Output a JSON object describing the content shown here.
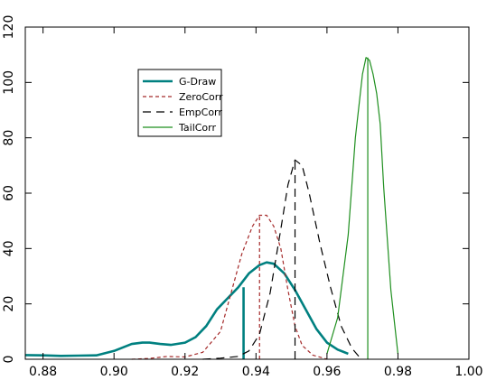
{
  "chart_data": {
    "type": "line",
    "title": "",
    "xlabel": "",
    "ylabel": "",
    "xlim": [
      0.875,
      1.0
    ],
    "ylim": [
      0,
      120
    ],
    "grid": false,
    "legend_position": "upper-left",
    "xticks": [
      0.88,
      0.9,
      0.92,
      0.94,
      0.96,
      0.98,
      1.0
    ],
    "xtick_labels": [
      "0.88",
      "0.90",
      "0.92",
      "0.94",
      "0.96",
      "0.98",
      "1.00"
    ],
    "yticks": [
      0,
      20,
      40,
      60,
      80,
      100,
      120
    ],
    "ytick_labels": [
      "0",
      "20",
      "40",
      "60",
      "80",
      "100",
      "120"
    ],
    "series": [
      {
        "name": "G-Draw",
        "color": "#008080",
        "style": "solid-thick",
        "x": [
          0.875,
          0.88,
          0.885,
          0.89,
          0.895,
          0.9,
          0.905,
          0.908,
          0.91,
          0.913,
          0.916,
          0.92,
          0.923,
          0.926,
          0.929,
          0.932,
          0.935,
          0.938,
          0.941,
          0.943,
          0.945,
          0.948,
          0.951,
          0.954,
          0.957,
          0.96,
          0.963,
          0.966
        ],
        "y": [
          1.5,
          1.4,
          1.2,
          1.3,
          1.4,
          3,
          5.5,
          6,
          6,
          5.5,
          5.2,
          6,
          8,
          12,
          18,
          22,
          26,
          31,
          34,
          35,
          34.5,
          31,
          25,
          18,
          11,
          6,
          3.5,
          2
        ],
        "vline": {
          "x": 0.9365,
          "y": 26
        }
      },
      {
        "name": "ZeroCorr",
        "color": "#a52a2a",
        "style": "dotted",
        "x": [
          0.905,
          0.91,
          0.915,
          0.92,
          0.925,
          0.93,
          0.933,
          0.936,
          0.939,
          0.941,
          0.943,
          0.945,
          0.947,
          0.949,
          0.951,
          0.953,
          0.956,
          0.96
        ],
        "y": [
          0,
          0.3,
          1,
          0.8,
          2.5,
          10,
          24,
          38,
          48,
          52,
          52,
          48,
          40,
          25,
          12,
          5,
          1.5,
          0
        ],
        "vline": {
          "x": 0.941,
          "y": 52
        }
      },
      {
        "name": "EmpCorr",
        "color": "#000000",
        "style": "dashed",
        "x": [
          0.925,
          0.93,
          0.935,
          0.938,
          0.941,
          0.944,
          0.947,
          0.949,
          0.951,
          0.953,
          0.955,
          0.958,
          0.961,
          0.964,
          0.967,
          0.969
        ],
        "y": [
          0,
          0.4,
          1,
          3,
          9,
          24,
          47,
          63,
          72,
          70,
          60,
          42,
          26,
          12,
          4,
          1
        ],
        "vline": {
          "x": 0.951,
          "y": 72
        }
      },
      {
        "name": "TailCorr",
        "color": "#1f8f1f",
        "style": "solid-thin",
        "x": [
          0.96,
          0.963,
          0.966,
          0.968,
          0.97,
          0.971,
          0.972,
          0.973,
          0.974,
          0.975,
          0.976,
          0.978,
          0.98
        ],
        "y": [
          2,
          15,
          45,
          80,
          103,
          109,
          108,
          103,
          96,
          85,
          62,
          25,
          2
        ],
        "vline": {
          "x": 0.9715,
          "y": 109
        }
      }
    ]
  }
}
